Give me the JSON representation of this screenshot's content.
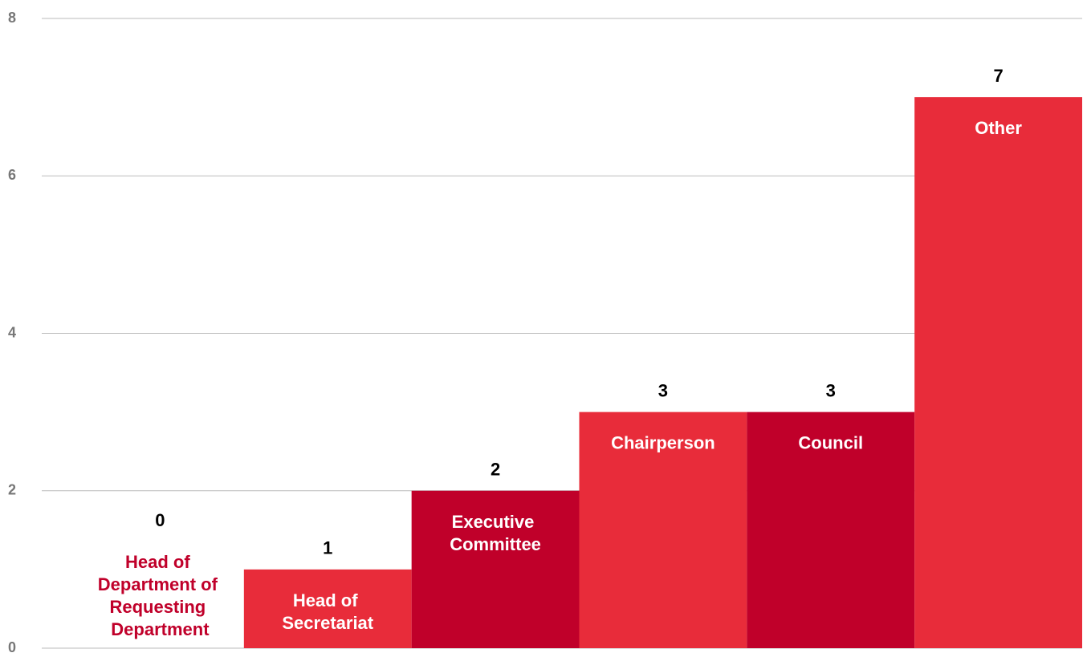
{
  "chart_data": {
    "type": "bar",
    "categories": [
      "Head of Department of Requesting Department",
      "Head of Secretariat",
      "Executive Committee",
      "Chairperson",
      "Council",
      "Other"
    ],
    "values": [
      0,
      1,
      2,
      3,
      3,
      7
    ],
    "colors": [
      "#c0002a",
      "#e82c3a",
      "#c0002a",
      "#e82c3a",
      "#c0002a",
      "#e82c3a"
    ],
    "ylim": [
      0,
      8
    ],
    "yticks": [
      0,
      2,
      4,
      6,
      8
    ],
    "grid": true
  }
}
